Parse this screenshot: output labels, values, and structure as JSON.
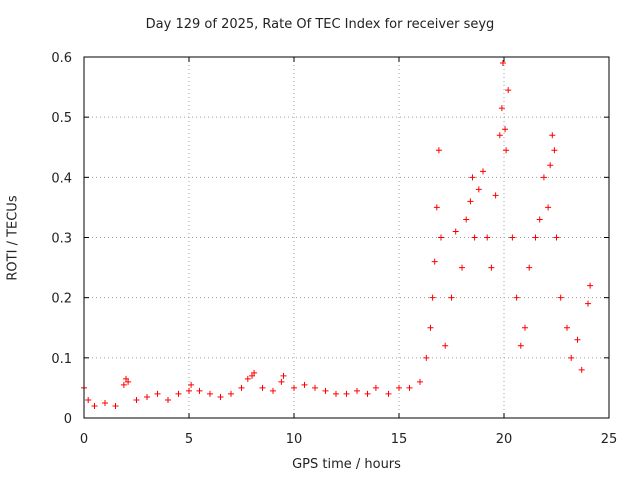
{
  "chart_data": {
    "type": "scatter",
    "title": "Day 129 of 2025, Rate Of TEC Index for receiver seyg",
    "xlabel": "GPS time / hours",
    "ylabel": "ROTI / TECUs",
    "xlim": [
      0,
      25
    ],
    "ylim": [
      0,
      0.6
    ],
    "xticks": [
      "0",
      "5",
      "10",
      "15",
      "20",
      "25"
    ],
    "yticks": [
      "0",
      "0.1",
      "0.2",
      "0.3",
      "0.4",
      "0.5",
      "0.6"
    ],
    "grid": true,
    "marker": "+",
    "color": "#ff0000",
    "series": [
      {
        "points": [
          [
            0.0,
            0.05
          ],
          [
            0.2,
            0.03
          ],
          [
            0.5,
            0.02
          ],
          [
            1.0,
            0.025
          ],
          [
            1.5,
            0.02
          ],
          [
            1.9,
            0.055
          ],
          [
            2.0,
            0.065
          ],
          [
            2.1,
            0.06
          ],
          [
            2.5,
            0.03
          ],
          [
            3.0,
            0.035
          ],
          [
            3.5,
            0.04
          ],
          [
            4.0,
            0.03
          ],
          [
            4.5,
            0.04
          ],
          [
            5.0,
            0.045
          ],
          [
            5.1,
            0.055
          ],
          [
            5.5,
            0.045
          ],
          [
            6.0,
            0.04
          ],
          [
            6.5,
            0.035
          ],
          [
            7.0,
            0.04
          ],
          [
            7.5,
            0.05
          ],
          [
            7.8,
            0.065
          ],
          [
            8.0,
            0.07
          ],
          [
            8.1,
            0.075
          ],
          [
            8.5,
            0.05
          ],
          [
            9.0,
            0.045
          ],
          [
            9.4,
            0.06
          ],
          [
            9.5,
            0.07
          ],
          [
            10.0,
            0.05
          ],
          [
            10.5,
            0.055
          ],
          [
            11.0,
            0.05
          ],
          [
            11.5,
            0.045
          ],
          [
            12.0,
            0.04
          ],
          [
            12.5,
            0.04
          ],
          [
            13.0,
            0.045
          ],
          [
            13.5,
            0.04
          ],
          [
            13.9,
            0.05
          ],
          [
            14.5,
            0.04
          ],
          [
            15.0,
            0.05
          ],
          [
            15.5,
            0.05
          ],
          [
            16.0,
            0.06
          ],
          [
            16.3,
            0.1
          ],
          [
            16.5,
            0.15
          ],
          [
            16.6,
            0.2
          ],
          [
            16.7,
            0.26
          ],
          [
            16.8,
            0.35
          ],
          [
            16.9,
            0.445
          ],
          [
            17.0,
            0.3
          ],
          [
            17.2,
            0.12
          ],
          [
            17.5,
            0.2
          ],
          [
            17.7,
            0.31
          ],
          [
            18.0,
            0.25
          ],
          [
            18.2,
            0.33
          ],
          [
            18.4,
            0.36
          ],
          [
            18.5,
            0.4
          ],
          [
            18.6,
            0.3
          ],
          [
            18.8,
            0.38
          ],
          [
            19.0,
            0.41
          ],
          [
            19.2,
            0.3
          ],
          [
            19.4,
            0.25
          ],
          [
            19.6,
            0.37
          ],
          [
            19.8,
            0.47
          ],
          [
            19.9,
            0.515
          ],
          [
            19.95,
            0.59
          ],
          [
            20.05,
            0.48
          ],
          [
            20.1,
            0.445
          ],
          [
            20.2,
            0.545
          ],
          [
            20.4,
            0.3
          ],
          [
            20.6,
            0.2
          ],
          [
            20.8,
            0.12
          ],
          [
            21.0,
            0.15
          ],
          [
            21.2,
            0.25
          ],
          [
            21.5,
            0.3
          ],
          [
            21.7,
            0.33
          ],
          [
            21.9,
            0.4
          ],
          [
            22.1,
            0.35
          ],
          [
            22.2,
            0.42
          ],
          [
            22.3,
            0.47
          ],
          [
            22.4,
            0.445
          ],
          [
            22.5,
            0.3
          ],
          [
            22.7,
            0.2
          ],
          [
            23.0,
            0.15
          ],
          [
            23.2,
            0.1
          ],
          [
            23.5,
            0.13
          ],
          [
            23.7,
            0.08
          ],
          [
            24.0,
            0.19
          ],
          [
            24.1,
            0.22
          ]
        ]
      }
    ]
  }
}
